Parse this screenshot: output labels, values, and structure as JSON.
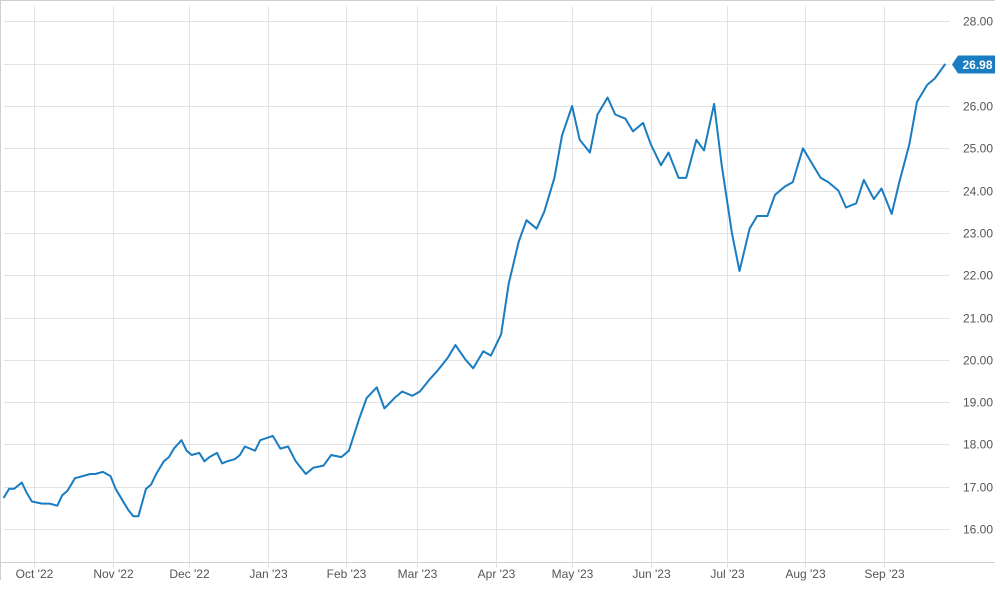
{
  "chart_data": {
    "type": "line",
    "title": "",
    "xlabel": "",
    "ylabel": "",
    "x_tick_labels": [
      "Oct '22",
      "Nov '22",
      "Dec '22",
      "Jan '23",
      "Feb '23",
      "Mar '23",
      "Apr '23",
      "May '23",
      "Jun '23",
      "Jul '23",
      "Aug '23",
      "Sep '23"
    ],
    "y_tick_labels": [
      "16.00",
      "17.00",
      "18.00",
      "19.00",
      "20.00",
      "21.00",
      "22.00",
      "23.00",
      "24.00",
      "25.00",
      "26.00",
      "27.00",
      "28.00"
    ],
    "ylim": [
      15.3,
      28.3
    ],
    "xlim": [
      "2022-09-19",
      "2023-09-27"
    ],
    "last_value_label": "26.98",
    "grid": true,
    "line_color": "#1a7cc1",
    "series": [
      {
        "x": [
          "2022-09-19",
          "2022-09-21",
          "2022-09-23",
          "2022-09-26",
          "2022-09-28",
          "2022-09-30",
          "2022-10-04",
          "2022-10-07",
          "2022-10-10",
          "2022-10-12",
          "2022-10-14",
          "2022-10-17",
          "2022-10-20",
          "2022-10-23",
          "2022-10-25",
          "2022-10-28",
          "2022-10-31",
          "2022-11-02",
          "2022-11-04",
          "2022-11-07",
          "2022-11-09",
          "2022-11-11",
          "2022-11-14",
          "2022-11-16",
          "2022-11-18",
          "2022-11-21",
          "2022-11-23",
          "2022-11-25",
          "2022-11-28",
          "2022-11-30",
          "2022-12-02",
          "2022-12-05",
          "2022-12-07",
          "2022-12-09",
          "2022-12-12",
          "2022-12-14",
          "2022-12-16",
          "2022-12-19",
          "2022-12-21",
          "2022-12-23",
          "2022-12-27",
          "2022-12-29",
          "2023-01-03",
          "2023-01-06",
          "2023-01-09",
          "2023-01-12",
          "2023-01-16",
          "2023-01-19",
          "2023-01-23",
          "2023-01-26",
          "2023-01-30",
          "2023-02-02",
          "2023-02-06",
          "2023-02-09",
          "2023-02-13",
          "2023-02-16",
          "2023-02-20",
          "2023-02-23",
          "2023-02-27",
          "2023-03-02",
          "2023-03-06",
          "2023-03-09",
          "2023-03-13",
          "2023-03-16",
          "2023-03-20",
          "2023-03-23",
          "2023-03-27",
          "2023-03-30",
          "2023-04-03",
          "2023-04-06",
          "2023-04-10",
          "2023-04-13",
          "2023-04-17",
          "2023-04-20",
          "2023-04-24",
          "2023-04-27",
          "2023-05-01",
          "2023-05-04",
          "2023-05-08",
          "2023-05-11",
          "2023-05-15",
          "2023-05-18",
          "2023-05-22",
          "2023-05-25",
          "2023-05-29",
          "2023-06-01",
          "2023-06-05",
          "2023-06-08",
          "2023-06-12",
          "2023-06-15",
          "2023-06-19",
          "2023-06-22",
          "2023-06-26",
          "2023-06-29",
          "2023-07-03",
          "2023-07-06",
          "2023-07-10",
          "2023-07-13",
          "2023-07-17",
          "2023-07-20",
          "2023-07-24",
          "2023-07-27",
          "2023-07-31",
          "2023-08-03",
          "2023-08-07",
          "2023-08-10",
          "2023-08-14",
          "2023-08-17",
          "2023-08-21",
          "2023-08-24",
          "2023-08-28",
          "2023-08-31",
          "2023-09-04",
          "2023-09-07",
          "2023-09-11",
          "2023-09-14",
          "2023-09-18",
          "2023-09-21",
          "2023-09-25"
        ],
        "y": [
          16.75,
          16.95,
          16.95,
          17.1,
          16.85,
          16.65,
          16.6,
          16.6,
          16.55,
          16.8,
          16.9,
          17.2,
          17.25,
          17.3,
          17.3,
          17.35,
          17.25,
          16.95,
          16.75,
          16.45,
          16.3,
          16.3,
          16.95,
          17.05,
          17.3,
          17.6,
          17.7,
          17.9,
          18.1,
          17.85,
          17.75,
          17.8,
          17.6,
          17.7,
          17.8,
          17.55,
          17.6,
          17.65,
          17.75,
          17.95,
          17.85,
          18.1,
          18.2,
          17.9,
          17.95,
          17.6,
          17.3,
          17.45,
          17.5,
          17.75,
          17.7,
          17.85,
          18.6,
          19.1,
          19.35,
          18.85,
          19.1,
          19.25,
          19.15,
          19.25,
          19.55,
          19.75,
          20.05,
          20.35,
          20.0,
          19.8,
          20.2,
          20.1,
          20.6,
          21.8,
          22.8,
          23.3,
          23.1,
          23.5,
          24.3,
          25.3,
          26.0,
          25.2,
          24.9,
          25.8,
          26.2,
          25.8,
          25.7,
          25.4,
          25.6,
          25.1,
          24.6,
          24.9,
          24.3,
          24.3,
          25.2,
          24.95,
          26.05,
          24.6,
          23.0,
          22.1,
          23.1,
          23.4,
          23.4,
          23.9,
          24.1,
          24.2,
          25.0,
          24.7,
          24.3,
          24.2,
          24.0,
          23.6,
          23.7,
          24.25,
          23.8,
          24.05,
          23.45,
          24.2,
          25.1,
          26.1,
          26.5,
          26.65,
          26.98
        ]
      }
    ]
  }
}
